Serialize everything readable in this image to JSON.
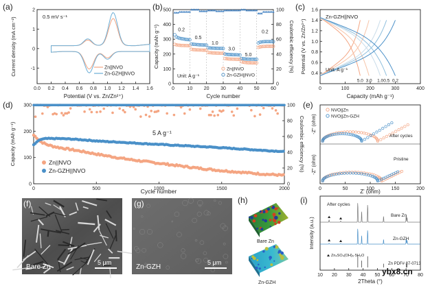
{
  "chart_data": [
    {
      "panel": "(a)",
      "type": "line",
      "annotation": "0.5 mV s⁻¹",
      "xlabel": "Potential (V vs. Zn/Zn²⁺)",
      "ylabel": "Current density (mA cm⁻²)",
      "xlim": [
        0.0,
        1.6
      ],
      "ylim": [
        -1.8,
        2.0
      ],
      "xticks": [
        "0.0",
        "0.2",
        "0.4",
        "0.6",
        "0.8",
        "1.0",
        "1.2",
        "1.4",
        "1.6"
      ],
      "yticks": [
        "-1",
        "0",
        "1",
        "2"
      ],
      "series": [
        {
          "name": "Zn||NVO",
          "color": "#f4a582"
        },
        {
          "name": "Zn-GZH||NVO",
          "color": "#6baed6"
        }
      ]
    },
    {
      "panel": "(b)",
      "type": "scatter",
      "annotation": "Unit: A g⁻¹",
      "rate_labels": [
        "0.2",
        "0.5",
        "1.0",
        "3.0",
        "5.0",
        "0.2"
      ],
      "xlabel": "Cycle number",
      "ylabel": "Capacity (mAh g⁻¹)",
      "ylabel2": "Coulombic efficiency (%)",
      "xlim": [
        0,
        60
      ],
      "ylim": [
        0,
        500
      ],
      "ylim2": [
        0,
        100
      ],
      "xticks": [
        "0",
        "10",
        "20",
        "30",
        "40",
        "50",
        "60"
      ],
      "yticks": [
        "0",
        "100",
        "200",
        "300",
        "400",
        "500"
      ],
      "yticks2": [
        "0",
        "20",
        "40",
        "60",
        "80",
        "100"
      ],
      "series": [
        {
          "name": "Zn||NVO",
          "color": "#f4a582",
          "values": [
            [
              1,
              265
            ],
            [
              2,
              262
            ],
            [
              3,
              260
            ],
            [
              4,
              259
            ],
            [
              5,
              258
            ],
            [
              6,
              258
            ],
            [
              7,
              257
            ],
            [
              8,
              257
            ],
            [
              9,
              256
            ],
            [
              10,
              256
            ],
            [
              11,
              232
            ],
            [
              12,
              230
            ],
            [
              13,
              229
            ],
            [
              14,
              228
            ],
            [
              15,
              228
            ],
            [
              16,
              227
            ],
            [
              17,
              227
            ],
            [
              18,
              226
            ],
            [
              19,
              226
            ],
            [
              20,
              226
            ],
            [
              21,
              210
            ],
            [
              22,
              209
            ],
            [
              23,
              208
            ],
            [
              24,
              207
            ],
            [
              25,
              207
            ],
            [
              26,
              206
            ],
            [
              27,
              206
            ],
            [
              28,
              205
            ],
            [
              29,
              205
            ],
            [
              30,
              205
            ],
            [
              31,
              170
            ],
            [
              32,
              168
            ],
            [
              33,
              167
            ],
            [
              34,
              166
            ],
            [
              35,
              166
            ],
            [
              36,
              165
            ],
            [
              37,
              165
            ],
            [
              38,
              164
            ],
            [
              39,
              164
            ],
            [
              40,
              164
            ],
            [
              41,
              148
            ],
            [
              42,
              145
            ],
            [
              43,
              143
            ],
            [
              44,
              142
            ],
            [
              45,
              141
            ],
            [
              46,
              141
            ],
            [
              47,
              140
            ],
            [
              48,
              140
            ],
            [
              49,
              140
            ],
            [
              50,
              140
            ],
            [
              51,
              245
            ],
            [
              52,
              248
            ],
            [
              53,
              250
            ],
            [
              54,
              251
            ],
            [
              55,
              251
            ],
            [
              56,
              252
            ],
            [
              57,
              252
            ],
            [
              58,
              252
            ],
            [
              59,
              252
            ],
            [
              60,
              252
            ]
          ]
        },
        {
          "name": "Zn-GZH||NVO",
          "color": "#4a90c8",
          "values": [
            [
              1,
              330
            ],
            [
              2,
              315
            ],
            [
              3,
              310
            ],
            [
              4,
              306
            ],
            [
              5,
              304
            ],
            [
              6,
              302
            ],
            [
              7,
              300
            ],
            [
              8,
              298
            ],
            [
              9,
              297
            ],
            [
              10,
              296
            ],
            [
              11,
              268
            ],
            [
              12,
              266
            ],
            [
              13,
              265
            ],
            [
              14,
              264
            ],
            [
              15,
              263
            ],
            [
              16,
              262
            ],
            [
              17,
              262
            ],
            [
              18,
              261
            ],
            [
              19,
              261
            ],
            [
              20,
              260
            ],
            [
              21,
              242
            ],
            [
              22,
              241
            ],
            [
              23,
              240
            ],
            [
              24,
              240
            ],
            [
              25,
              239
            ],
            [
              26,
              239
            ],
            [
              27,
              238
            ],
            [
              28,
              238
            ],
            [
              29,
              238
            ],
            [
              30,
              237
            ],
            [
              31,
              200
            ],
            [
              32,
              198
            ],
            [
              33,
              197
            ],
            [
              34,
              196
            ],
            [
              35,
              196
            ],
            [
              36,
              195
            ],
            [
              37,
              195
            ],
            [
              38,
              195
            ],
            [
              39,
              194
            ],
            [
              40,
              194
            ],
            [
              41,
              170
            ],
            [
              42,
              168
            ],
            [
              43,
              167
            ],
            [
              44,
              166
            ],
            [
              45,
              166
            ],
            [
              46,
              165
            ],
            [
              47,
              165
            ],
            [
              48,
              165
            ],
            [
              49,
              164
            ],
            [
              50,
              164
            ],
            [
              51,
              275
            ],
            [
              52,
              280
            ],
            [
              53,
              282
            ],
            [
              54,
              283
            ],
            [
              55,
              284
            ],
            [
              56,
              284
            ],
            [
              57,
              284
            ],
            [
              58,
              284
            ],
            [
              59,
              284
            ],
            [
              60,
              284
            ]
          ]
        },
        {
          "name": "CE (Zn-GZH||NVO)",
          "color": "#3f7fc0",
          "axis": "y2",
          "values": [
            [
              1,
              96
            ],
            [
              5,
              97
            ],
            [
              10,
              97
            ],
            [
              11,
              100
            ],
            [
              20,
              98
            ],
            [
              21,
              99
            ],
            [
              30,
              98
            ],
            [
              31,
              99
            ],
            [
              40,
              99
            ],
            [
              41,
              100
            ],
            [
              45,
              99
            ],
            [
              50,
              99
            ],
            [
              51,
              95
            ],
            [
              55,
              97
            ],
            [
              60,
              97
            ]
          ]
        }
      ]
    },
    {
      "panel": "(c)",
      "type": "line",
      "annotation": "Zn-GZH||NVO",
      "rate_labels": [
        "5.0",
        "3.0",
        "1.0",
        "0.5",
        "0.2"
      ],
      "xlabel": "Capacity (mAh g⁻¹)",
      "ylabel": "Potential (V vs. Zn/Zn²⁺)",
      "xlim": [
        0,
        400
      ],
      "ylim": [
        0.2,
        1.6
      ],
      "xticks": [
        "0",
        "100",
        "200",
        "300",
        "400"
      ],
      "yticks": [
        "0.4",
        "0.6",
        "0.8",
        "1.0",
        "1.2",
        "1.4",
        "1.6"
      ],
      "rate_capacities": [
        160,
        195,
        240,
        265,
        300
      ]
    },
    {
      "panel": "(d)",
      "type": "scatter",
      "annotation": "5 A g⁻¹",
      "xlabel": "Cycle number",
      "ylabel": "Capacity (mAh g⁻¹)",
      "ylabel2": "Coulombic efficiency (%)",
      "xlim": [
        0,
        2000
      ],
      "ylim": [
        0,
        300
      ],
      "ylim2": [
        0,
        100
      ],
      "xticks": [
        "0",
        "500",
        "1000",
        "1500",
        "2000"
      ],
      "yticks": [
        "0",
        "100",
        "200",
        "300"
      ],
      "yticks2": [
        "0",
        "20",
        "40",
        "60",
        "80",
        "100"
      ],
      "series": [
        {
          "name": "Zn||NVO",
          "color": "#f4a582",
          "values": [
            [
              0,
              185
            ],
            [
              25,
              175
            ],
            [
              50,
              162
            ],
            [
              100,
              150
            ],
            [
              150,
              143
            ],
            [
              200,
              138
            ],
            [
              300,
              130
            ],
            [
              400,
              122
            ],
            [
              500,
              113
            ],
            [
              600,
              105
            ],
            [
              700,
              97
            ],
            [
              800,
              90
            ],
            [
              900,
              84
            ],
            [
              1000,
              78
            ],
            [
              1100,
              72
            ],
            [
              1200,
              66
            ],
            [
              1300,
              60
            ],
            [
              1400,
              55
            ],
            [
              1500,
              50
            ],
            [
              1600,
              46
            ],
            [
              1700,
              42
            ],
            [
              1800,
              38
            ],
            [
              1900,
              35
            ],
            [
              2000,
              32
            ]
          ]
        },
        {
          "name": "Zn-GZH||NVO",
          "color": "#4a90c8",
          "values": [
            [
              0,
              148
            ],
            [
              50,
              168
            ],
            [
              100,
              172
            ],
            [
              200,
              172
            ],
            [
              300,
              170
            ],
            [
              400,
              167
            ],
            [
              500,
              163
            ],
            [
              600,
              160
            ],
            [
              700,
              158
            ],
            [
              800,
              155
            ],
            [
              900,
              152
            ],
            [
              1000,
              150
            ],
            [
              1100,
              147
            ],
            [
              1200,
              145
            ],
            [
              1300,
              142
            ],
            [
              1400,
              140
            ],
            [
              1500,
              137
            ],
            [
              1600,
              134
            ],
            [
              1700,
              131
            ],
            [
              1800,
              128
            ],
            [
              1900,
              125
            ],
            [
              2000,
              123
            ]
          ]
        },
        {
          "name": "CE Zn||NVO",
          "color": "#f4a582",
          "axis": "y2",
          "note": "scattered 85–100%"
        },
        {
          "name": "CE Zn-GZH||NVO",
          "color": "#4a90c8",
          "axis": "y2",
          "values": [
            [
              0,
              99.8
            ],
            [
              2000,
              99.8
            ]
          ]
        }
      ]
    },
    {
      "panel": "(e)",
      "type": "scatter",
      "xlabel": "Z' (ohm)",
      "ylabel": "-Z'' (ohm)",
      "xlim": [
        0,
        200
      ],
      "xticks": [
        "0",
        "50",
        "100",
        "150",
        "200"
      ],
      "group_labels": [
        "After cycles",
        "Pristine"
      ],
      "series": [
        {
          "name": "NVO||Zn",
          "color": "#f4a582"
        },
        {
          "name": "NVO||Zn-GZH",
          "color": "#4a90c8"
        }
      ]
    },
    {
      "panel": "(i)",
      "type": "line",
      "annotation": "After cycles",
      "xlabel": "2Theta (°)",
      "ylabel": "Intensity (a.u.)",
      "xlim": [
        10,
        80
      ],
      "xticks": [
        "10",
        "20",
        "30",
        "40",
        "50",
        "60",
        "70",
        "80"
      ],
      "series_labels": [
        "Bare Zn",
        "Zn-GZH",
        "Zn PDF# 87-0713"
      ],
      "legend_marker": "Zn₄SO₄(OH)₆·5H₂O"
    }
  ],
  "images": {
    "f": {
      "panel": "(f)",
      "label": "Bare Zn",
      "scale": "5 μm"
    },
    "g": {
      "panel": "(g)",
      "label": "Zn-GZH",
      "scale": "5 μm"
    },
    "h": {
      "panel": "(h)",
      "label_top": "Bare Zn",
      "label_bottom": "Zn-GZH"
    }
  },
  "watermark": "ybx8.cn"
}
